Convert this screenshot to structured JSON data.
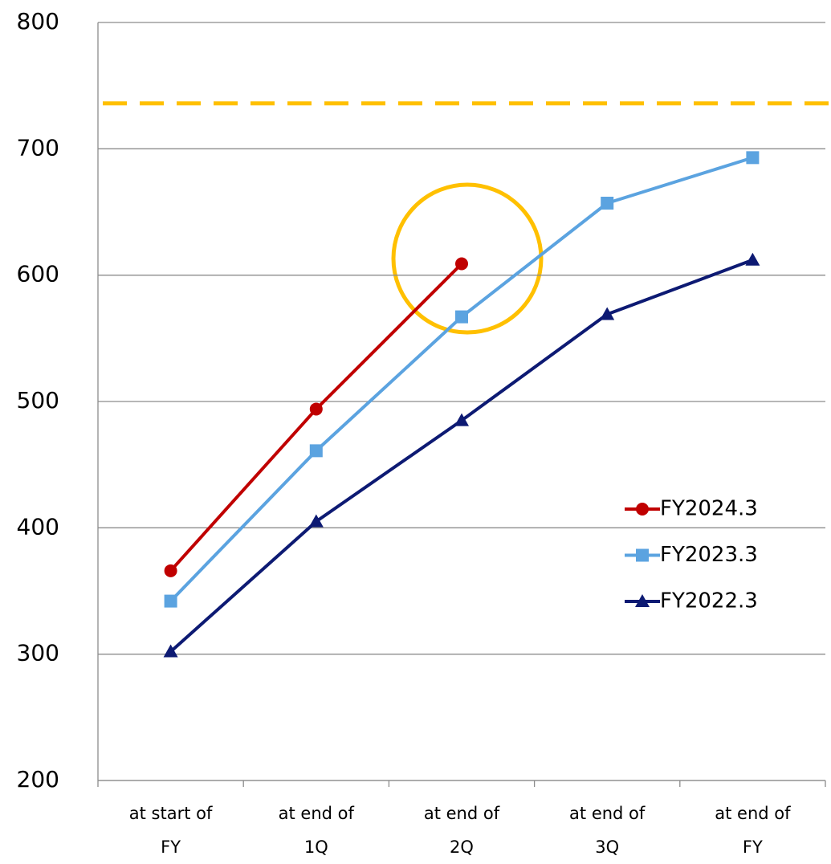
{
  "chart_data": {
    "type": "line",
    "categories": [
      "at start of FY",
      "at end of 1Q",
      "at end of 2Q",
      "at end of 3Q",
      "at end of FY"
    ],
    "series": [
      {
        "name": "FY2024.3",
        "color": "#c00000",
        "marker": "circle",
        "values": [
          366,
          494,
          609,
          null,
          null
        ]
      },
      {
        "name": "FY2023.3",
        "color": "#5ba3e0",
        "marker": "square",
        "values": [
          342,
          461,
          567,
          657,
          693
        ]
      },
      {
        "name": "FY2022.3",
        "color": "#0d1a73",
        "marker": "triangle",
        "values": [
          302,
          405,
          485,
          569,
          612
        ]
      }
    ],
    "reference_line": {
      "value": 736,
      "color": "#ffc000"
    },
    "ylim": [
      200,
      800
    ],
    "yticks": [
      200,
      300,
      400,
      500,
      600,
      700,
      800
    ],
    "grid": true
  }
}
